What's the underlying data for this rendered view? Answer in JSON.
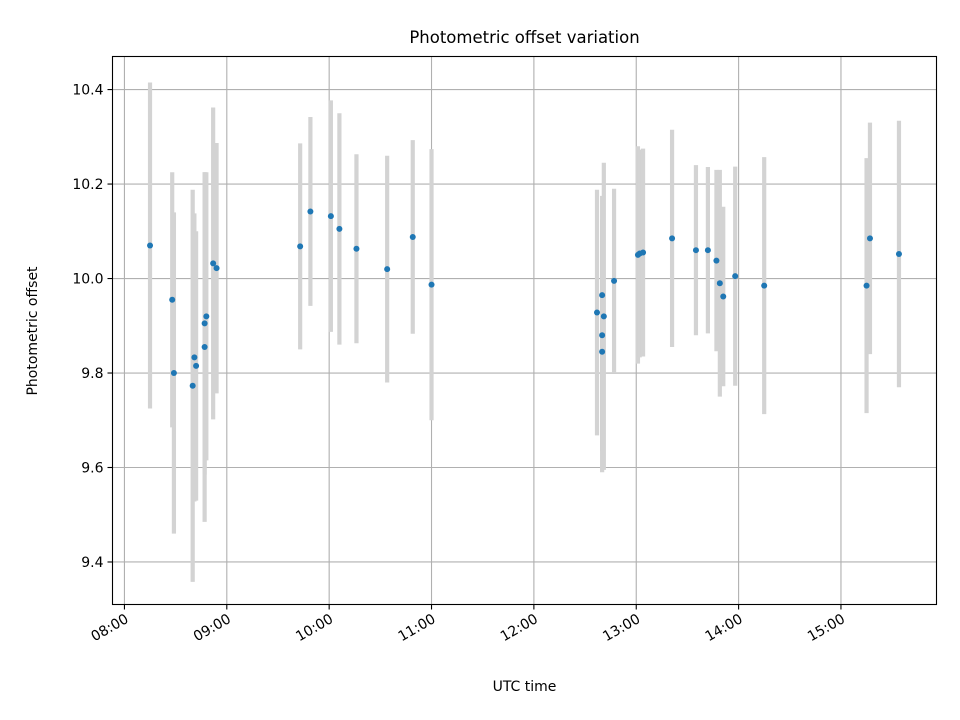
{
  "chart_data": {
    "type": "scatter",
    "title": "Photometric offset variation",
    "xlabel": "UTC time",
    "ylabel": "Photometric offset",
    "xlim": [
      "07:53",
      "15:56"
    ],
    "ylim": [
      9.31,
      10.47
    ],
    "x_ticks": [
      "08:00",
      "09:00",
      "10:00",
      "11:00",
      "12:00",
      "13:00",
      "14:00",
      "15:00"
    ],
    "y_ticks": [
      9.4,
      9.6,
      9.8,
      10.0,
      10.2,
      10.4
    ],
    "y_tick_labels": [
      "9.4",
      "9.6",
      "9.8",
      "10.0",
      "10.2",
      "10.4"
    ],
    "grid": true,
    "colors": {
      "points": "#1f77b4",
      "error_bars": "#d3d3d3",
      "grid": "#b0b0b0"
    },
    "points": [
      {
        "time": "08:15",
        "y": 10.07,
        "err": 0.345
      },
      {
        "time": "08:28",
        "y": 9.955,
        "err": 0.27
      },
      {
        "time": "08:29",
        "y": 9.8,
        "err": 0.34
      },
      {
        "time": "08:40",
        "y": 9.773,
        "err": 0.415
      },
      {
        "time": "08:41",
        "y": 9.833,
        "err": 0.305
      },
      {
        "time": "08:42",
        "y": 9.815,
        "err": 0.285
      },
      {
        "time": "08:47",
        "y": 9.855,
        "err": 0.37
      },
      {
        "time": "08:47",
        "y": 9.905,
        "err": 0.32
      },
      {
        "time": "08:48",
        "y": 9.92,
        "err": 0.305
      },
      {
        "time": "08:52",
        "y": 10.032,
        "err": 0.33
      },
      {
        "time": "08:54",
        "y": 10.022,
        "err": 0.265
      },
      {
        "time": "09:43",
        "y": 10.068,
        "err": 0.218
      },
      {
        "time": "09:49",
        "y": 10.142,
        "err": 0.2
      },
      {
        "time": "10:01",
        "y": 10.132,
        "err": 0.245
      },
      {
        "time": "10:06",
        "y": 10.105,
        "err": 0.245
      },
      {
        "time": "10:16",
        "y": 10.063,
        "err": 0.2
      },
      {
        "time": "10:34",
        "y": 10.02,
        "err": 0.24
      },
      {
        "time": "10:49",
        "y": 10.088,
        "err": 0.205
      },
      {
        "time": "11:00",
        "y": 9.987,
        "err": 0.287
      },
      {
        "time": "12:37",
        "y": 9.928,
        "err": 0.26
      },
      {
        "time": "12:40",
        "y": 9.845,
        "err": 0.255
      },
      {
        "time": "12:40",
        "y": 9.88,
        "err": 0.245
      },
      {
        "time": "12:40",
        "y": 9.965,
        "err": 0.21
      },
      {
        "time": "12:41",
        "y": 9.92,
        "err": 0.325
      },
      {
        "time": "12:47",
        "y": 9.995,
        "err": 0.195
      },
      {
        "time": "13:01",
        "y": 10.05,
        "err": 0.23
      },
      {
        "time": "13:02",
        "y": 10.053,
        "err": 0.22
      },
      {
        "time": "13:04",
        "y": 10.055,
        "err": 0.22
      },
      {
        "time": "13:21",
        "y": 10.085,
        "err": 0.23
      },
      {
        "time": "13:35",
        "y": 10.06,
        "err": 0.18
      },
      {
        "time": "13:42",
        "y": 10.06,
        "err": 0.176
      },
      {
        "time": "13:47",
        "y": 10.038,
        "err": 0.192
      },
      {
        "time": "13:49",
        "y": 9.99,
        "err": 0.24
      },
      {
        "time": "13:51",
        "y": 9.962,
        "err": 0.19
      },
      {
        "time": "13:58",
        "y": 10.005,
        "err": 0.232
      },
      {
        "time": "14:15",
        "y": 9.985,
        "err": 0.272
      },
      {
        "time": "15:15",
        "y": 9.985,
        "err": 0.27
      },
      {
        "time": "15:17",
        "y": 10.085,
        "err": 0.245
      },
      {
        "time": "15:34",
        "y": 10.052,
        "err": 0.282
      }
    ]
  }
}
